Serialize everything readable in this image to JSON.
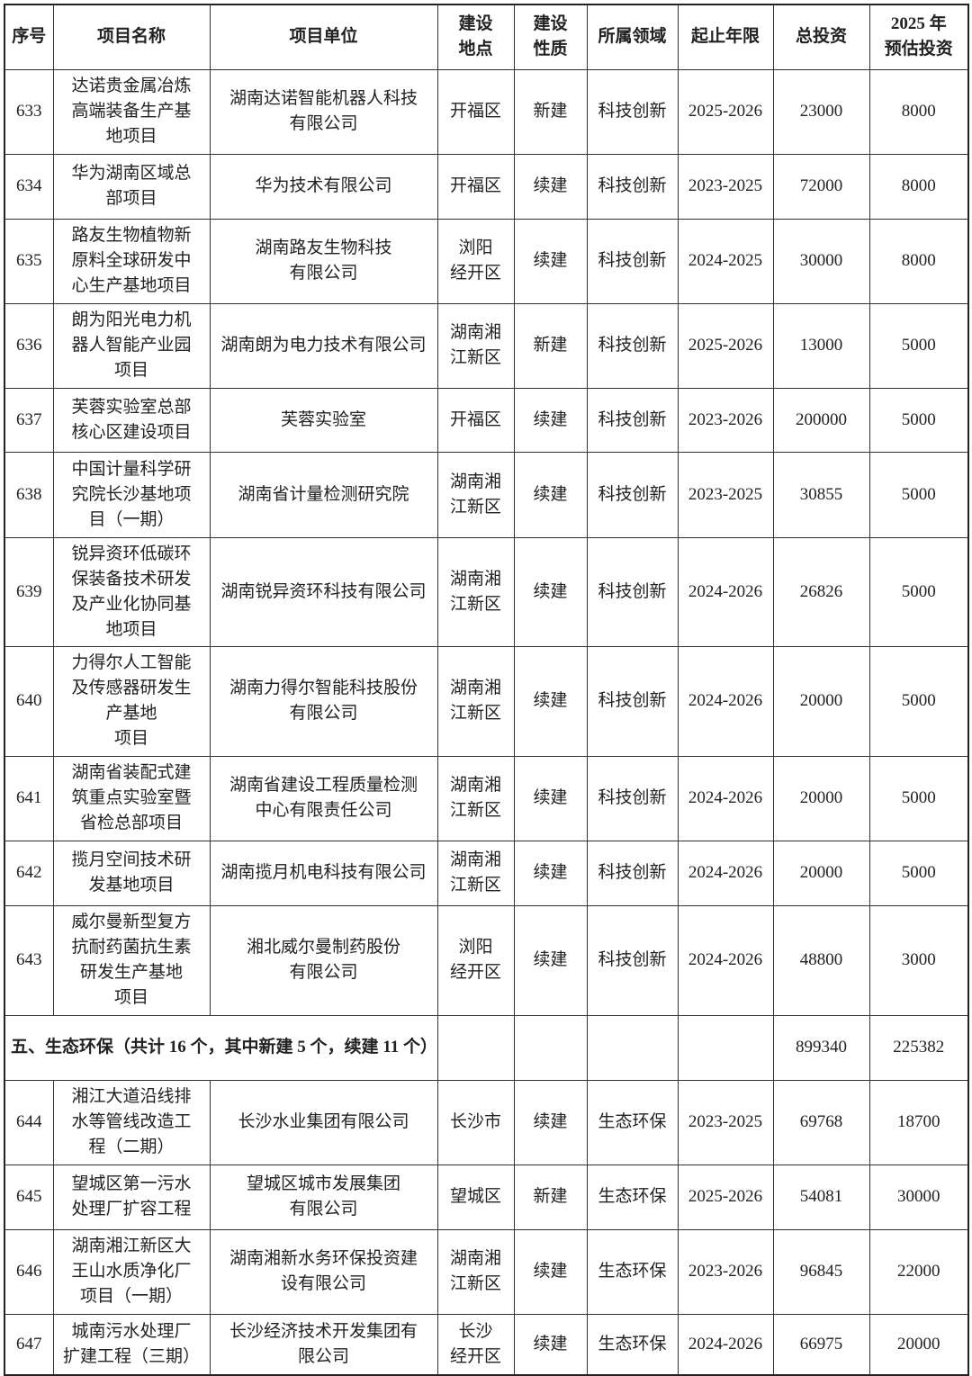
{
  "headers": [
    "序号",
    "项目名称",
    "项目单位",
    "建设\n地点",
    "建设\n性质",
    "所属领域",
    "起止年限",
    "总投资",
    "2025 年\n预估投资"
  ],
  "rows_a": [
    [
      "633",
      "达诺贵金属冶炼\n高端装备生产基\n地项目",
      "湖南达诺智能机器人科技\n有限公司",
      "开福区",
      "新建",
      "科技创新",
      "2025-2026",
      "23000",
      "8000"
    ],
    [
      "634",
      "华为湖南区域总\n部项目",
      "华为技术有限公司",
      "开福区",
      "续建",
      "科技创新",
      "2023-2025",
      "72000",
      "8000"
    ],
    [
      "635",
      "路友生物植物新\n原料全球研发中\n心生产基地项目",
      "湖南路友生物科技\n有限公司",
      "浏阳\n经开区",
      "续建",
      "科技创新",
      "2024-2025",
      "30000",
      "8000"
    ],
    [
      "636",
      "朗为阳光电力机\n器人智能产业园\n项目",
      "湖南朗为电力技术有限公司",
      "湖南湘\n江新区",
      "新建",
      "科技创新",
      "2025-2026",
      "13000",
      "5000"
    ],
    [
      "637",
      "芙蓉实验室总部\n核心区建设项目",
      "芙蓉实验室",
      "开福区",
      "续建",
      "科技创新",
      "2023-2026",
      "200000",
      "5000"
    ],
    [
      "638",
      "中国计量科学研\n究院长沙基地项\n目（一期）",
      "湖南省计量检测研究院",
      "湖南湘\n江新区",
      "续建",
      "科技创新",
      "2023-2025",
      "30855",
      "5000"
    ],
    [
      "639",
      "锐异资环低碳环\n保装备技术研发\n及产业化协同基\n地项目",
      "湖南锐异资环科技有限公司",
      "湖南湘\n江新区",
      "续建",
      "科技创新",
      "2024-2026",
      "26826",
      "5000"
    ],
    [
      "640",
      "力得尔人工智能\n及传感器研发生\n产基地\n项目",
      "湖南力得尔智能科技股份\n有限公司",
      "湖南湘\n江新区",
      "续建",
      "科技创新",
      "2024-2026",
      "20000",
      "5000"
    ],
    [
      "641",
      "湖南省装配式建\n筑重点实验室暨\n省检总部项目",
      "湖南省建设工程质量检测\n中心有限责任公司",
      "湖南湘\n江新区",
      "续建",
      "科技创新",
      "2024-2026",
      "20000",
      "5000"
    ],
    [
      "642",
      "揽月空间技术研\n发基地项目",
      "湖南揽月机电科技有限公司",
      "湖南湘\n江新区",
      "续建",
      "科技创新",
      "2024-2026",
      "20000",
      "5000"
    ],
    [
      "643",
      "威尔曼新型复方\n抗耐药菌抗生素\n研发生产基地\n项目",
      "湘北威尔曼制药股份\n有限公司",
      "浏阳\n经开区",
      "续建",
      "科技创新",
      "2024-2026",
      "48800",
      "3000"
    ]
  ],
  "section": {
    "label": "五、生态环保（共计 16 个，其中新建 5 个，续建 11 个）",
    "total": "899340",
    "estimate": "225382"
  },
  "rows_b": [
    [
      "644",
      "湘江大道沿线排\n水等管线改造工\n程（二期）",
      "长沙水业集团有限公司",
      "长沙市",
      "续建",
      "生态环保",
      "2023-2025",
      "69768",
      "18700"
    ],
    [
      "645",
      "望城区第一污水\n处理厂扩容工程",
      "望城区城市发展集团\n有限公司",
      "望城区",
      "新建",
      "生态环保",
      "2025-2026",
      "54081",
      "30000"
    ],
    [
      "646",
      "湖南湘江新区大\n王山水质净化厂\n项目（一期）",
      "湖南湘新水务环保投资建\n设有限公司",
      "湖南湘\n江新区",
      "续建",
      "生态环保",
      "2023-2026",
      "96845",
      "22000"
    ],
    [
      "647",
      "城南污水处理厂\n扩建工程（三期）",
      "长沙经济技术开发集团有\n限公司",
      "长沙\n经开区",
      "续建",
      "生态环保",
      "2024-2026",
      "66975",
      "20000"
    ]
  ]
}
